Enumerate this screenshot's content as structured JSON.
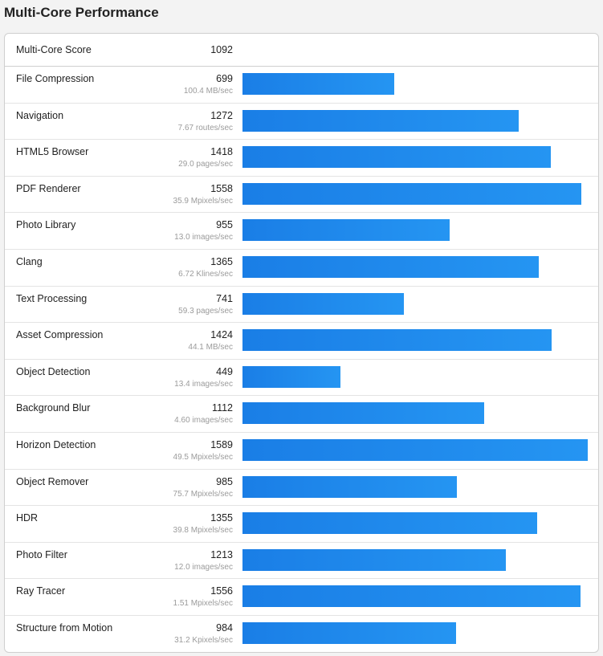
{
  "page_title": "Multi-Core Performance",
  "summary": {
    "name": "Multi-Core Score",
    "score": "1092"
  },
  "colors": {
    "bar": "#1f8af0"
  },
  "chart_data": {
    "type": "bar",
    "orientation": "horizontal",
    "title": "Multi-Core Performance",
    "categories": [
      "File Compression",
      "Navigation",
      "HTML5 Browser",
      "PDF Renderer",
      "Photo Library",
      "Clang",
      "Text Processing",
      "Asset Compression",
      "Object Detection",
      "Background Blur",
      "Horizon Detection",
      "Object Remover",
      "HDR",
      "Photo Filter",
      "Ray Tracer",
      "Structure from Motion"
    ],
    "values": [
      699,
      1272,
      1418,
      1558,
      955,
      1365,
      741,
      1424,
      449,
      1112,
      1589,
      985,
      1355,
      1213,
      1556,
      984
    ],
    "metrics": [
      "100.4 MB/sec",
      "7.67 routes/sec",
      "29.0 pages/sec",
      "35.9 Mpixels/sec",
      "13.0 images/sec",
      "6.72 Klines/sec",
      "59.3 pages/sec",
      "44.1 MB/sec",
      "13.4 images/sec",
      "4.60 images/sec",
      "49.5 Mpixels/sec",
      "75.7 Mpixels/sec",
      "39.8 Mpixels/sec",
      "12.0 images/sec",
      "1.51 Mpixels/sec",
      "31.2 Kpixels/sec"
    ],
    "xlim": [
      0,
      1589
    ]
  }
}
